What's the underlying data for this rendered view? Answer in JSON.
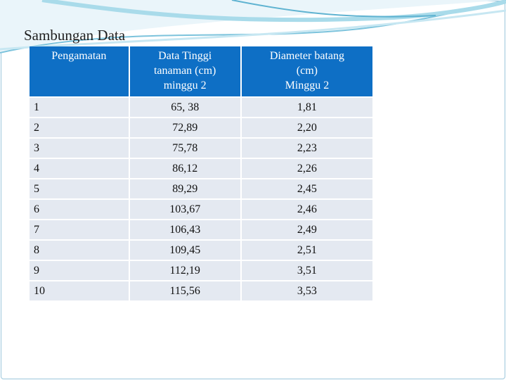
{
  "title": "Sambungan Data",
  "table": {
    "header": [
      [
        "Pengamatan"
      ],
      [
        "Data Tinggi",
        "tanaman (cm)",
        "minggu 2"
      ],
      [
        "Diameter batang",
        "(cm)",
        "Minggu 2"
      ]
    ],
    "rows": [
      [
        "1",
        "65, 38",
        "1,81"
      ],
      [
        "2",
        "72,89",
        "2,20"
      ],
      [
        "3",
        "75,78",
        "2,23"
      ],
      [
        "4",
        "86,12",
        "2,26"
      ],
      [
        "5",
        "89,29",
        "2,45"
      ],
      [
        "6",
        "103,67",
        "2,46"
      ],
      [
        "7",
        "106,43",
        "2,49"
      ],
      [
        "8",
        "109,45",
        "2,51"
      ],
      [
        "9",
        "112,19",
        "3,51"
      ],
      [
        "10",
        "115,56",
        "3,53"
      ]
    ]
  }
}
